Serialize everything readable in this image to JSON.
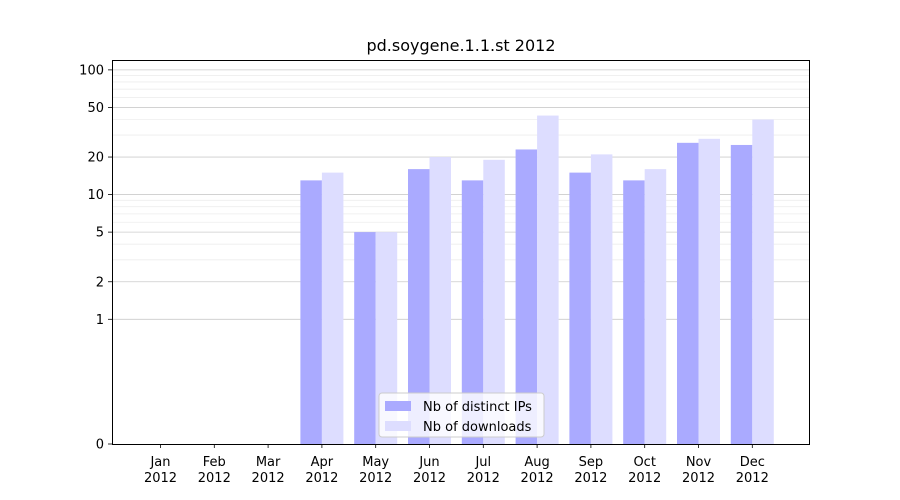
{
  "chart_data": {
    "type": "bar",
    "title": "pd.soygene.1.1.st 2012",
    "xlabel": "",
    "ylabel": "",
    "y_scale": "symlog",
    "ylim": [
      0,
      120
    ],
    "y_ticks": [
      0,
      1,
      2,
      5,
      10,
      20,
      50,
      100
    ],
    "grid": true,
    "legend_position": "lower-center",
    "categories": [
      {
        "month": "Jan",
        "year": "2012"
      },
      {
        "month": "Feb",
        "year": "2012"
      },
      {
        "month": "Mar",
        "year": "2012"
      },
      {
        "month": "Apr",
        "year": "2012"
      },
      {
        "month": "May",
        "year": "2012"
      },
      {
        "month": "Jun",
        "year": "2012"
      },
      {
        "month": "Jul",
        "year": "2012"
      },
      {
        "month": "Aug",
        "year": "2012"
      },
      {
        "month": "Sep",
        "year": "2012"
      },
      {
        "month": "Oct",
        "year": "2012"
      },
      {
        "month": "Nov",
        "year": "2012"
      },
      {
        "month": "Dec",
        "year": "2012"
      }
    ],
    "series": [
      {
        "name": "Nb of distinct IPs",
        "color": "#aaaaff",
        "values": [
          0,
          0,
          0,
          13,
          5,
          16,
          13,
          23,
          15,
          13,
          26,
          25
        ]
      },
      {
        "name": "Nb of downloads",
        "color": "#ddddff",
        "values": [
          0,
          0,
          0,
          15,
          5,
          20,
          19,
          43,
          21,
          16,
          28,
          40
        ]
      }
    ]
  }
}
